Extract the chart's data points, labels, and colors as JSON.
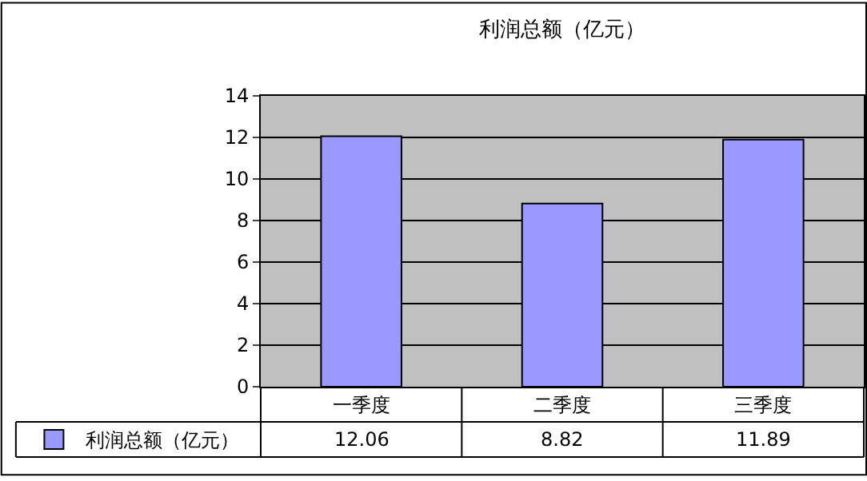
{
  "chart_data": {
    "type": "bar",
    "title": "利润总额（亿元）",
    "categories": [
      "一季度",
      "二季度",
      "三季度"
    ],
    "series": [
      {
        "name": "利润总额（亿元）",
        "color": "#9999ff",
        "values": [
          12.06,
          8.82,
          11.89
        ]
      }
    ],
    "ylim": [
      0,
      14
    ],
    "yticks": [
      0,
      2,
      4,
      6,
      8,
      10,
      12,
      14
    ],
    "grid": "y",
    "legend": "bottom left",
    "data_labels": true
  }
}
